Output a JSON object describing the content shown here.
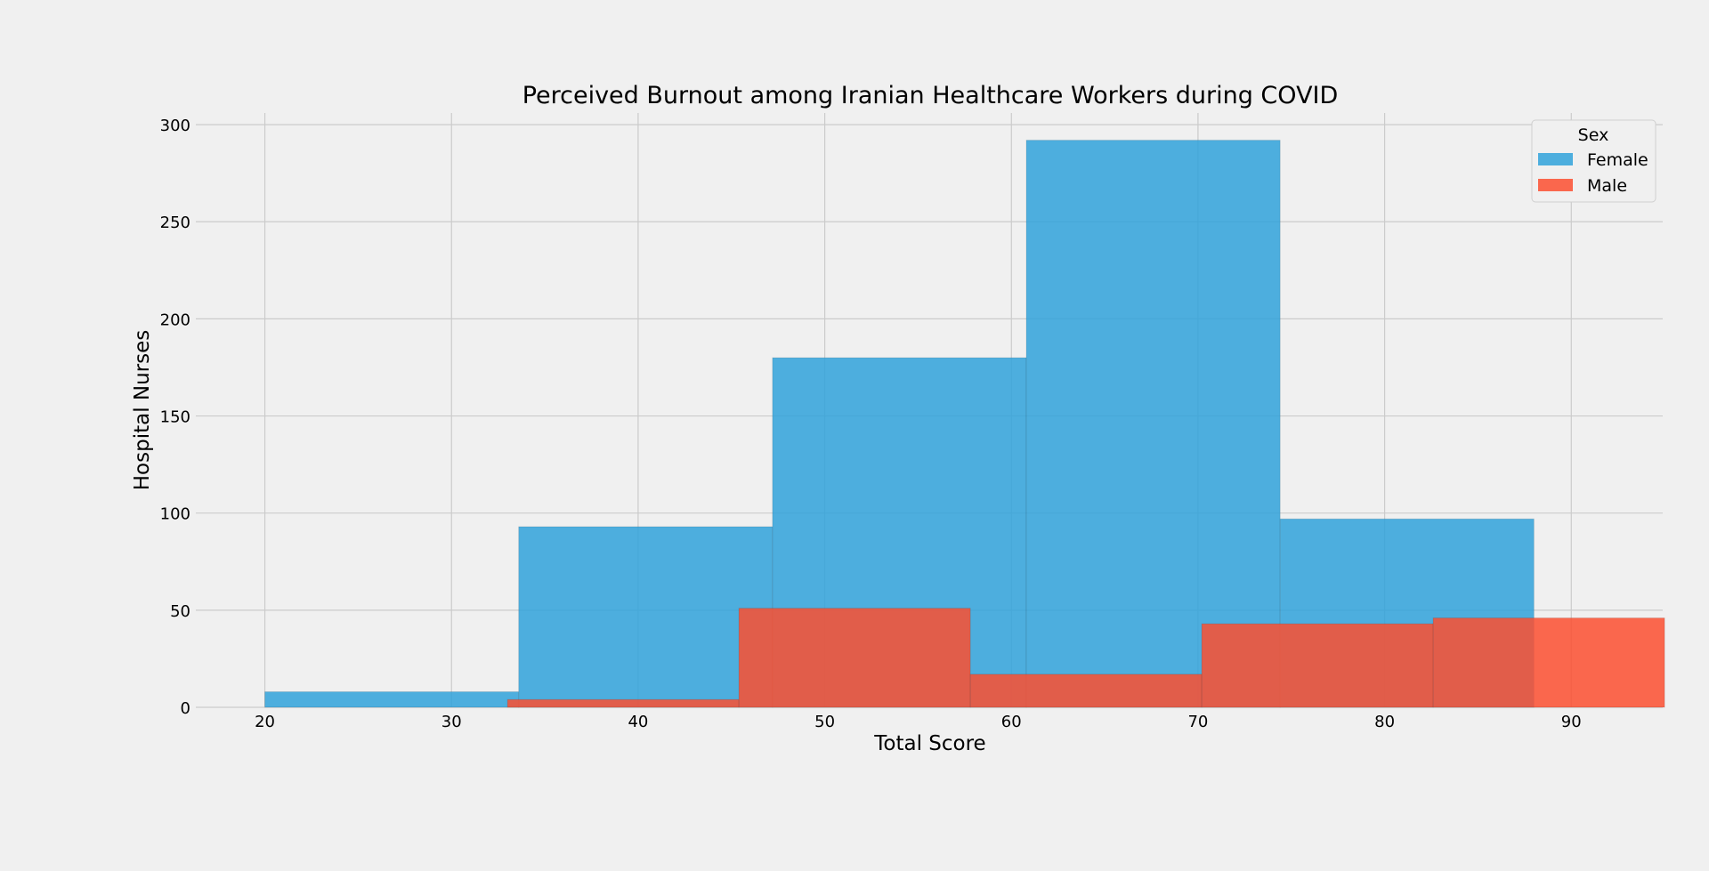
{
  "chart_data": {
    "type": "histogram",
    "title": "Perceived Burnout among Iranian Healthcare Workers during COVID",
    "xlabel": "Total Score",
    "ylabel": "Hospital Nurses",
    "xlim": [
      16.3,
      94.9
    ],
    "ylim": [
      0,
      306
    ],
    "xticks": [
      20,
      30,
      40,
      50,
      60,
      70,
      80,
      90
    ],
    "yticks": [
      0,
      50,
      100,
      150,
      200,
      250,
      300
    ],
    "grid": true,
    "legend": {
      "title": "Sex",
      "position": "top-right"
    },
    "series": [
      {
        "name": "Female",
        "color": "#30a2da",
        "bins": [
          {
            "x0": 20.0,
            "x1": 33.6,
            "count": 8
          },
          {
            "x0": 33.6,
            "x1": 47.2,
            "count": 93
          },
          {
            "x0": 47.2,
            "x1": 60.8,
            "count": 180
          },
          {
            "x0": 60.8,
            "x1": 74.4,
            "count": 292
          },
          {
            "x0": 74.4,
            "x1": 88.0,
            "count": 97
          }
        ]
      },
      {
        "name": "Male",
        "color": "#fc4f30",
        "bins": [
          {
            "x0": 33.0,
            "x1": 45.4,
            "count": 4
          },
          {
            "x0": 45.4,
            "x1": 57.8,
            "count": 51
          },
          {
            "x0": 57.8,
            "x1": 70.2,
            "count": 17
          },
          {
            "x0": 70.2,
            "x1": 82.6,
            "count": 43
          },
          {
            "x0": 82.6,
            "x1": 95.0,
            "count": 46
          }
        ]
      }
    ]
  }
}
